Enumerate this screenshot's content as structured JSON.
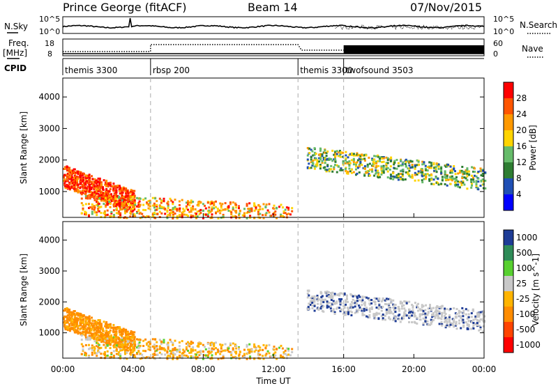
{
  "header": {
    "station": "Prince George (fitACF)",
    "beam": "Beam 14",
    "date": "07/Nov/2015"
  },
  "strip_labels": {
    "nsky": "N.Sky",
    "nsky_ticks": [
      "10^5",
      "10^0"
    ],
    "nsearch_ticks": [
      "10^5",
      "10^0"
    ],
    "nsearch": "N.Search",
    "freq": "Freq.",
    "freq_unit": "[MHz]",
    "freq_ticks": [
      "18",
      "8"
    ],
    "nave_ticks": [
      "60",
      "0"
    ],
    "nave": "Nave",
    "cpid": "CPID"
  },
  "cpid_segments": [
    {
      "label": "themis 3300",
      "start_hour": 0
    },
    {
      "label": "rbsp 200",
      "start_hour": 5.0
    },
    {
      "label": "themis 3300",
      "start_hour": 13.4
    },
    {
      "label": "twofsound 3503",
      "start_hour": 16.0
    }
  ],
  "x_axis": {
    "label": "Time UT",
    "ticks": [
      "00:00",
      "04:00",
      "08:00",
      "12:00",
      "16:00",
      "20:00",
      "00:00"
    ],
    "range_hours": [
      0,
      24
    ]
  },
  "colors": {
    "power_scale": [
      "#0000ff",
      "#1f4fb4",
      "#2e7d32",
      "#66bb6a",
      "#ffd400",
      "#ff9900",
      "#ff5500",
      "#ff0000"
    ],
    "velocity_scale": [
      "#ff0000",
      "#ff4400",
      "#ff8c00",
      "#ffb400",
      "#c8c8c8",
      "#58d030",
      "#2e8b57",
      "#1e3c96"
    ],
    "ground_scatter": "#c8c8c8"
  },
  "chart_data": [
    {
      "type": "heatmap",
      "panel": "power",
      "ylabel": "Slant Range [km]",
      "y_ticks": [
        "1000",
        "2000",
        "3000",
        "4000"
      ],
      "ylim": [
        180,
        4600
      ],
      "colorbar_label": "Power [dB]",
      "colorbar_ticks": [
        "4",
        "8",
        "12",
        "16",
        "20",
        "24",
        "28"
      ],
      "vmin": 0,
      "vmax": 32,
      "features": [
        {
          "name": "dayside band",
          "t_start": 0.0,
          "t_end": 4.0,
          "r_start": 1500,
          "r_end": 700,
          "level": 28
        },
        {
          "name": "near range echoes",
          "t_start": 1.0,
          "t_end": 13.0,
          "r_start": 600,
          "r_end": 250,
          "level": 22
        },
        {
          "name": "evening band",
          "t_start": 13.8,
          "t_end": 24.0,
          "r_start": 2100,
          "r_end": 1400,
          "level": 14
        }
      ]
    },
    {
      "type": "heatmap",
      "panel": "velocity",
      "ylabel": "Slant Range [km]",
      "y_ticks": [
        "1000",
        "2000",
        "3000",
        "4000"
      ],
      "ylim": [
        180,
        4600
      ],
      "colorbar_label": "Velocity [m s^-1]",
      "colorbar_ticks": [
        "1000",
        "500",
        "100",
        "25",
        "-25",
        "-100",
        "-500",
        "-1000"
      ],
      "vmin": -1000,
      "vmax": 1000,
      "features": [
        {
          "name": "dayside band",
          "t_start": 0.0,
          "t_end": 4.0,
          "r_start": 1500,
          "r_end": 700,
          "level": -150
        },
        {
          "name": "near range echoes",
          "t_start": 1.0,
          "t_end": 13.0,
          "r_start": 600,
          "r_end": 250,
          "level": -60
        },
        {
          "name": "evening band",
          "t_start": 13.8,
          "t_end": 24.0,
          "r_start": 2100,
          "r_end": 1400,
          "level": 0
        }
      ]
    }
  ]
}
